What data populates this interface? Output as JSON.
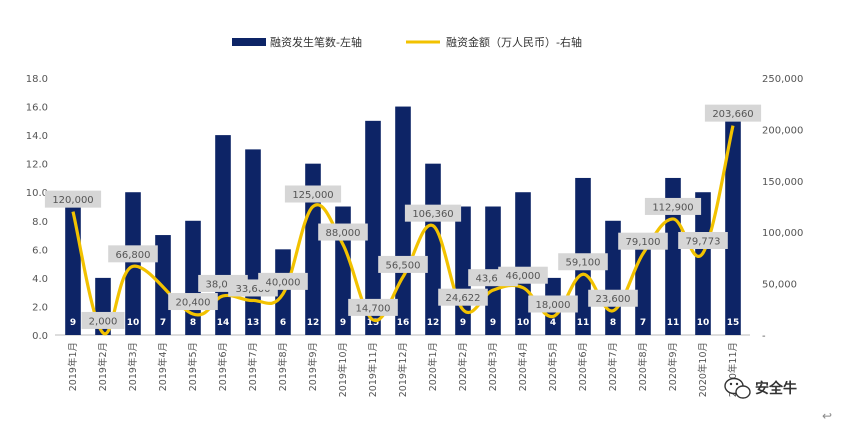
{
  "chart_data": {
    "type": "bar+line",
    "legend_placement": "top-center",
    "grid": false,
    "categories": [
      "2019年1月",
      "2019年2月",
      "2019年3月",
      "2019年4月",
      "2019年5月",
      "2019年6月",
      "2019年7月",
      "2019年8月",
      "2019年9月",
      "2019年10月",
      "2019年11月",
      "2019年12月",
      "2020年1月",
      "2020年2月",
      "2020年3月",
      "2020年4月",
      "2020年5月",
      "2020年6月",
      "2020年7月",
      "2020年8月",
      "2020年9月",
      "2020年10月",
      "2020年11月"
    ],
    "series": [
      {
        "name": "融资发生笔数-左轴",
        "type": "bar",
        "axis": "left",
        "color": "#0d2466",
        "values": [
          9,
          4,
          10,
          7,
          8,
          14,
          13,
          6,
          12,
          9,
          15,
          16,
          12,
          9,
          9,
          10,
          4,
          11,
          8,
          7,
          11,
          10,
          15
        ],
        "labels": [
          "9",
          "4",
          "10",
          "7",
          "8",
          "14",
          "13",
          "6",
          "12",
          "9",
          "15",
          "16",
          "12",
          "9",
          "9",
          "10",
          "4",
          "11",
          "8",
          "7",
          "11",
          "10",
          "15"
        ]
      },
      {
        "name": "融资金额（万人民币）-右轴",
        "type": "line",
        "axis": "right",
        "color": "#f2c200",
        "values": [
          120000,
          2000,
          66800,
          null,
          20400,
          38000,
          33600,
          40000,
          125000,
          88000,
          14700,
          56500,
          106360,
          24622,
          43600,
          46000,
          18000,
          59100,
          23600,
          79100,
          112900,
          79773,
          203660
        ],
        "labels": [
          "120,000",
          "2,000",
          "66,800",
          "",
          "20,400",
          "38,000",
          "33,600",
          "40,000",
          "125,000",
          "88,000",
          "14,700",
          "56,500",
          "106,360",
          "24,622",
          "43,600",
          "46,000",
          "18,000",
          "59,100",
          "23,600",
          "79,100",
          "112,900",
          "79,773",
          "203,660"
        ]
      }
    ],
    "left_axis": {
      "range": [
        0,
        18
      ],
      "ticks": [
        0,
        2,
        4,
        6,
        8,
        10,
        12,
        14,
        16,
        18
      ],
      "tick_labels": [
        "0.0",
        "2.0",
        "4.0",
        "6.0",
        "8.0",
        "10.0",
        "12.0",
        "14.0",
        "16.0",
        "18.0"
      ]
    },
    "right_axis": {
      "range": [
        0,
        250000
      ],
      "ticks": [
        0,
        50000,
        100000,
        150000,
        200000,
        250000
      ],
      "tick_labels": [
        "-",
        "50,000",
        "100,000",
        "150,000",
        "200,000",
        "250,000"
      ]
    }
  },
  "watermark": {
    "text": "安全牛",
    "icon": "wechat-icon"
  },
  "corner_mark": "↩"
}
